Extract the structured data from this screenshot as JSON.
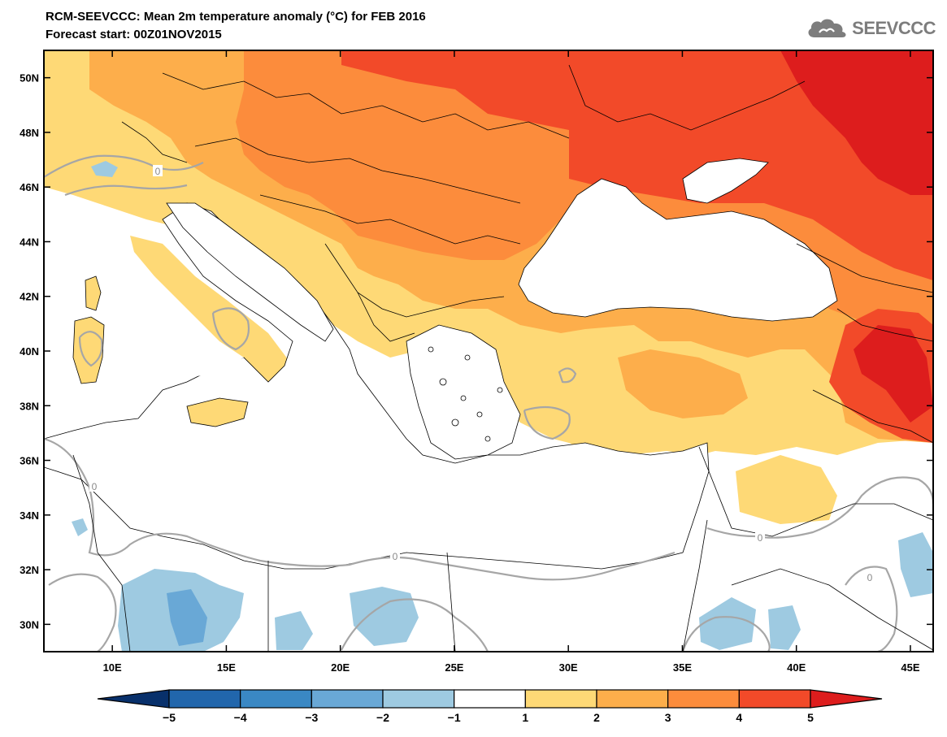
{
  "header": {
    "title": "RCM-SEEVCCC: Mean 2m temperature anomaly (°C) for FEB 2016",
    "subtitle": "Forecast start: 00Z01NOV2015",
    "logo_text": "SEEVCCC"
  },
  "chart_data": {
    "type": "heatmap",
    "x_range": [
      7,
      46
    ],
    "y_range": [
      29,
      51
    ],
    "x_ticks": [
      {
        "value": 10,
        "label": "10E"
      },
      {
        "value": 15,
        "label": "15E"
      },
      {
        "value": 20,
        "label": "20E"
      },
      {
        "value": 25,
        "label": "25E"
      },
      {
        "value": 30,
        "label": "30E"
      },
      {
        "value": 35,
        "label": "35E"
      },
      {
        "value": 40,
        "label": "40E"
      },
      {
        "value": 45,
        "label": "45E"
      }
    ],
    "y_ticks": [
      {
        "value": 30,
        "label": "30N"
      },
      {
        "value": 32,
        "label": "32N"
      },
      {
        "value": 34,
        "label": "34N"
      },
      {
        "value": 36,
        "label": "36N"
      },
      {
        "value": 38,
        "label": "38N"
      },
      {
        "value": 40,
        "label": "40N"
      },
      {
        "value": 42,
        "label": "42N"
      },
      {
        "value": 44,
        "label": "44N"
      },
      {
        "value": 46,
        "label": "46N"
      },
      {
        "value": 48,
        "label": "48N"
      },
      {
        "value": 50,
        "label": "50N"
      }
    ],
    "contour_label": "0",
    "colorbar": {
      "levels": [
        "−5",
        "−4",
        "−3",
        "−2",
        "−1",
        "1",
        "2",
        "3",
        "4",
        "5"
      ],
      "colors": [
        "#08306b",
        "#2166ac",
        "#3a88c4",
        "#69a8d6",
        "#9ecae1",
        "#ffffff",
        "#fed976",
        "#fdae4b",
        "#fc8c3c",
        "#f24a29",
        "#dd1d1d"
      ]
    },
    "palette": {
      "lvl1": "#fed976",
      "lvl2": "#fdae4b",
      "lvl3": "#fc8c3c",
      "lvl4": "#f24a29",
      "lvl5": "#dd1d1d",
      "neg1": "#9ecae1",
      "neg2": "#69a8d6",
      "contour": "#a6a6a6",
      "coast": "#000000",
      "sea": "#ffffff"
    }
  }
}
